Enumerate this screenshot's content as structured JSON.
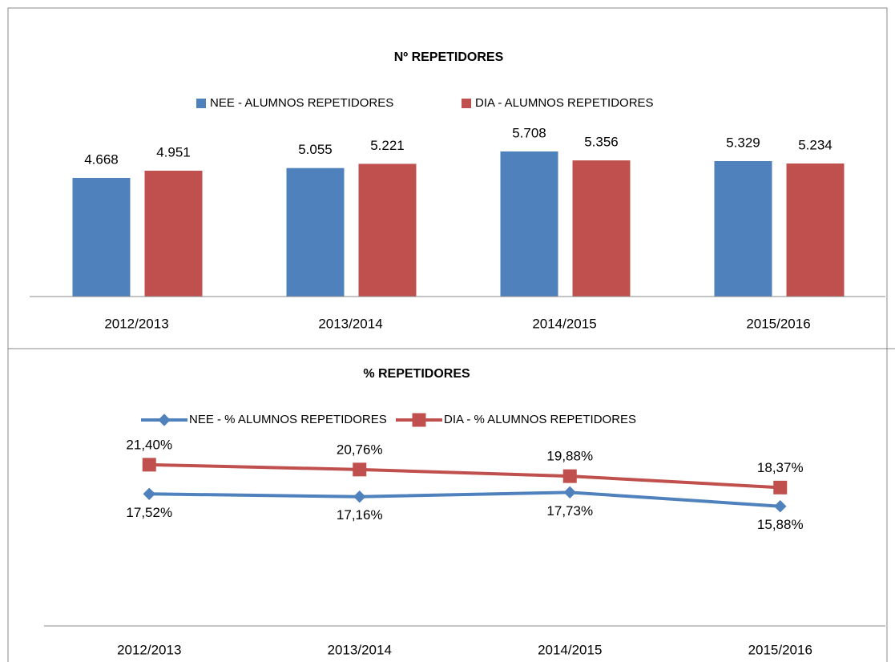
{
  "chart_data": [
    {
      "type": "bar",
      "title": "Nº REPETIDORES",
      "categories": [
        "2012/2013",
        "2013/2014",
        "2014/2015",
        "2015/2016"
      ],
      "series": [
        {
          "name": "NEE - ALUMNOS REPETIDORES",
          "color": "#4f81bd",
          "values": [
            4668,
            5055,
            5708,
            5329
          ],
          "value_labels": [
            "4.668",
            "5.055",
            "5.708",
            "5.329"
          ]
        },
        {
          "name": "DIA - ALUMNOS REPETIDORES",
          "color": "#c0504d",
          "values": [
            4951,
            5221,
            5356,
            5234
          ],
          "value_labels": [
            "4.951",
            "5.221",
            "5.356",
            "5.234"
          ]
        }
      ],
      "ylim": [
        0,
        7000
      ],
      "legend": "top"
    },
    {
      "type": "line",
      "title": "% REPETIDORES",
      "categories": [
        "2012/2013",
        "2013/2014",
        "2014/2015",
        "2015/2016"
      ],
      "series": [
        {
          "name": "NEE - % ALUMNOS REPETIDORES",
          "color": "#4f81bd",
          "values": [
            17.52,
            17.16,
            17.73,
            15.88
          ],
          "value_labels": [
            "17,52%",
            "17,16%",
            "17,73%",
            "15,88%"
          ]
        },
        {
          "name": "DIA - % ALUMNOS REPETIDORES",
          "color": "#c0504d",
          "values": [
            21.4,
            20.76,
            19.88,
            18.37
          ],
          "value_labels": [
            "21,40%",
            "20,76%",
            "19,88%",
            "18,37%"
          ]
        }
      ],
      "ylim": [
        0,
        25
      ],
      "legend": "top"
    }
  ]
}
